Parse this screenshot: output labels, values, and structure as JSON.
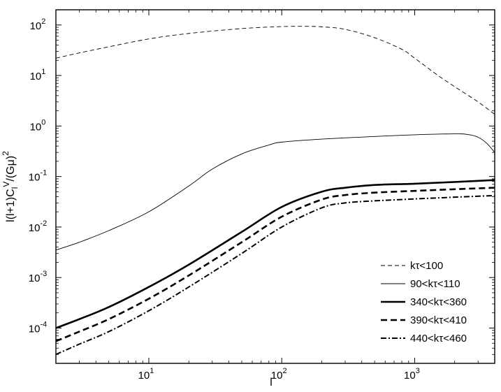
{
  "chart_data": {
    "type": "line",
    "title": "",
    "xlabel": "l",
    "ylabel": "l(l+1)C_l^V/(Gμ)^2",
    "xscale": "log",
    "yscale": "log",
    "xlim": [
      2,
      4000
    ],
    "ylim": [
      2e-05,
      200
    ],
    "x_ticks": [
      {
        "value": 10,
        "base": "10",
        "exp": "1"
      },
      {
        "value": 100,
        "base": "10",
        "exp": "2"
      },
      {
        "value": 1000,
        "base": "10",
        "exp": "3"
      }
    ],
    "y_ticks": [
      {
        "value": 0.0001,
        "base": "10",
        "exp": "-4"
      },
      {
        "value": 0.001,
        "base": "10",
        "exp": "-3"
      },
      {
        "value": 0.01,
        "base": "10",
        "exp": "-2"
      },
      {
        "value": 0.1,
        "base": "10",
        "exp": "-1"
      },
      {
        "value": 1,
        "base": "10",
        "exp": "0"
      },
      {
        "value": 10,
        "base": "10",
        "exp": "1"
      },
      {
        "value": 100,
        "base": "10",
        "exp": "2"
      }
    ],
    "grid": false,
    "legend_position": "bottom-right",
    "series": [
      {
        "name": "kτ<100",
        "style": "thin-dashed",
        "color": "#000000",
        "x": [
          2,
          3,
          5,
          10,
          20,
          50,
          100,
          150,
          200,
          300,
          500,
          800,
          1000,
          1500,
          2000,
          3000,
          4000
        ],
        "y": [
          22,
          28,
          37,
          53,
          68,
          85,
          93,
          94,
          92,
          82,
          56,
          33,
          22,
          10,
          6,
          3,
          1.7
        ]
      },
      {
        "name": "90<kτ<110",
        "style": "thin-solid",
        "color": "#000000",
        "x": [
          2,
          3,
          5,
          10,
          20,
          30,
          50,
          80,
          100,
          200,
          500,
          1000,
          2000,
          2500,
          3000,
          3500,
          4000
        ],
        "y": [
          0.0035,
          0.005,
          0.0085,
          0.02,
          0.065,
          0.14,
          0.28,
          0.42,
          0.48,
          0.55,
          0.62,
          0.67,
          0.7,
          0.68,
          0.6,
          0.45,
          0.3
        ]
      },
      {
        "name": "340<kτ<360",
        "style": "thick-solid",
        "color": "#000000",
        "x": [
          2,
          3,
          5,
          10,
          20,
          50,
          100,
          200,
          300,
          500,
          1000,
          2000,
          4000
        ],
        "y": [
          0.0001,
          0.00015,
          0.00026,
          0.00065,
          0.0018,
          0.008,
          0.025,
          0.05,
          0.06,
          0.068,
          0.072,
          0.078,
          0.085
        ]
      },
      {
        "name": "390<kτ<410",
        "style": "thick-dashed",
        "color": "#000000",
        "x": [
          2,
          3,
          5,
          10,
          20,
          50,
          100,
          200,
          300,
          500,
          1000,
          2000,
          4000
        ],
        "y": [
          5.5e-05,
          8.5e-05,
          0.00015,
          0.00038,
          0.0011,
          0.005,
          0.016,
          0.035,
          0.043,
          0.048,
          0.052,
          0.056,
          0.06
        ]
      },
      {
        "name": "440<kτ<460",
        "style": "dashdot",
        "color": "#000000",
        "x": [
          2,
          3,
          5,
          10,
          20,
          50,
          100,
          200,
          300,
          500,
          1000,
          2000,
          4000
        ],
        "y": [
          3e-05,
          4.8e-05,
          8.5e-05,
          0.00022,
          0.00065,
          0.003,
          0.01,
          0.024,
          0.03,
          0.033,
          0.036,
          0.039,
          0.042
        ]
      }
    ]
  }
}
